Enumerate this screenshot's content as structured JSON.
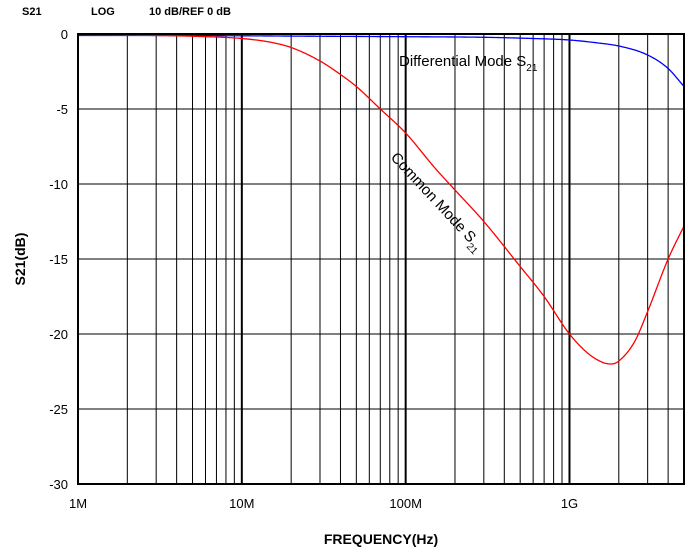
{
  "header": {
    "param": "S21",
    "format": "LOG",
    "scale_ref": "10 dB/REF 0 dB"
  },
  "chart_data": {
    "type": "line",
    "title": "",
    "xlabel": "FREQUENCY(Hz)",
    "ylabel": "S21(dB)",
    "x_scale": "log",
    "xlim": [
      1000000,
      5000000000
    ],
    "ylim": [
      -30,
      0
    ],
    "x_ticks": [
      {
        "value": 1000000,
        "label": "1M"
      },
      {
        "value": 10000000,
        "label": "10M"
      },
      {
        "value": 100000000,
        "label": "100M"
      },
      {
        "value": 1000000000,
        "label": "1G"
      }
    ],
    "y_ticks": [
      {
        "value": 0,
        "label": "0"
      },
      {
        "value": -5,
        "label": "-5"
      },
      {
        "value": -10,
        "label": "-10"
      },
      {
        "value": -15,
        "label": "-15"
      },
      {
        "value": -20,
        "label": "-20"
      },
      {
        "value": -25,
        "label": "-25"
      },
      {
        "value": -30,
        "label": "-30"
      }
    ],
    "grid": true,
    "series": [
      {
        "name": "Differential Mode S21",
        "color": "#0000ff",
        "x": [
          1000000,
          3000000,
          10000000,
          30000000,
          100000000,
          300000000,
          600000000,
          1000000000,
          1500000000,
          2000000000,
          3000000000,
          4000000000,
          5000000000
        ],
        "y": [
          -0.1,
          -0.1,
          -0.12,
          -0.15,
          -0.18,
          -0.22,
          -0.3,
          -0.4,
          -0.6,
          -0.8,
          -1.4,
          -2.3,
          -3.5
        ]
      },
      {
        "name": "Common Mode S21",
        "color": "#ff0000",
        "x": [
          1000000,
          3000000,
          5000000,
          10000000,
          15000000,
          20000000,
          30000000,
          40000000,
          50000000,
          70000000,
          100000000,
          150000000,
          200000000,
          300000000,
          500000000,
          700000000,
          1000000000,
          1300000000,
          1600000000,
          1800000000,
          2000000000,
          2500000000,
          3000000000,
          4000000000,
          5000000000
        ],
        "y": [
          -0.05,
          -0.1,
          -0.15,
          -0.3,
          -0.55,
          -0.9,
          -1.8,
          -2.7,
          -3.5,
          -5.0,
          -6.6,
          -8.9,
          -10.4,
          -12.5,
          -15.5,
          -17.5,
          -20.0,
          -21.3,
          -21.9,
          -22.0,
          -21.8,
          -20.5,
          -18.5,
          -15.0,
          -12.8
        ]
      }
    ],
    "annotations": [
      {
        "base": "Differential Mode S",
        "sub": "21"
      },
      {
        "base": "Common Mode S",
        "sub": "21"
      }
    ]
  }
}
